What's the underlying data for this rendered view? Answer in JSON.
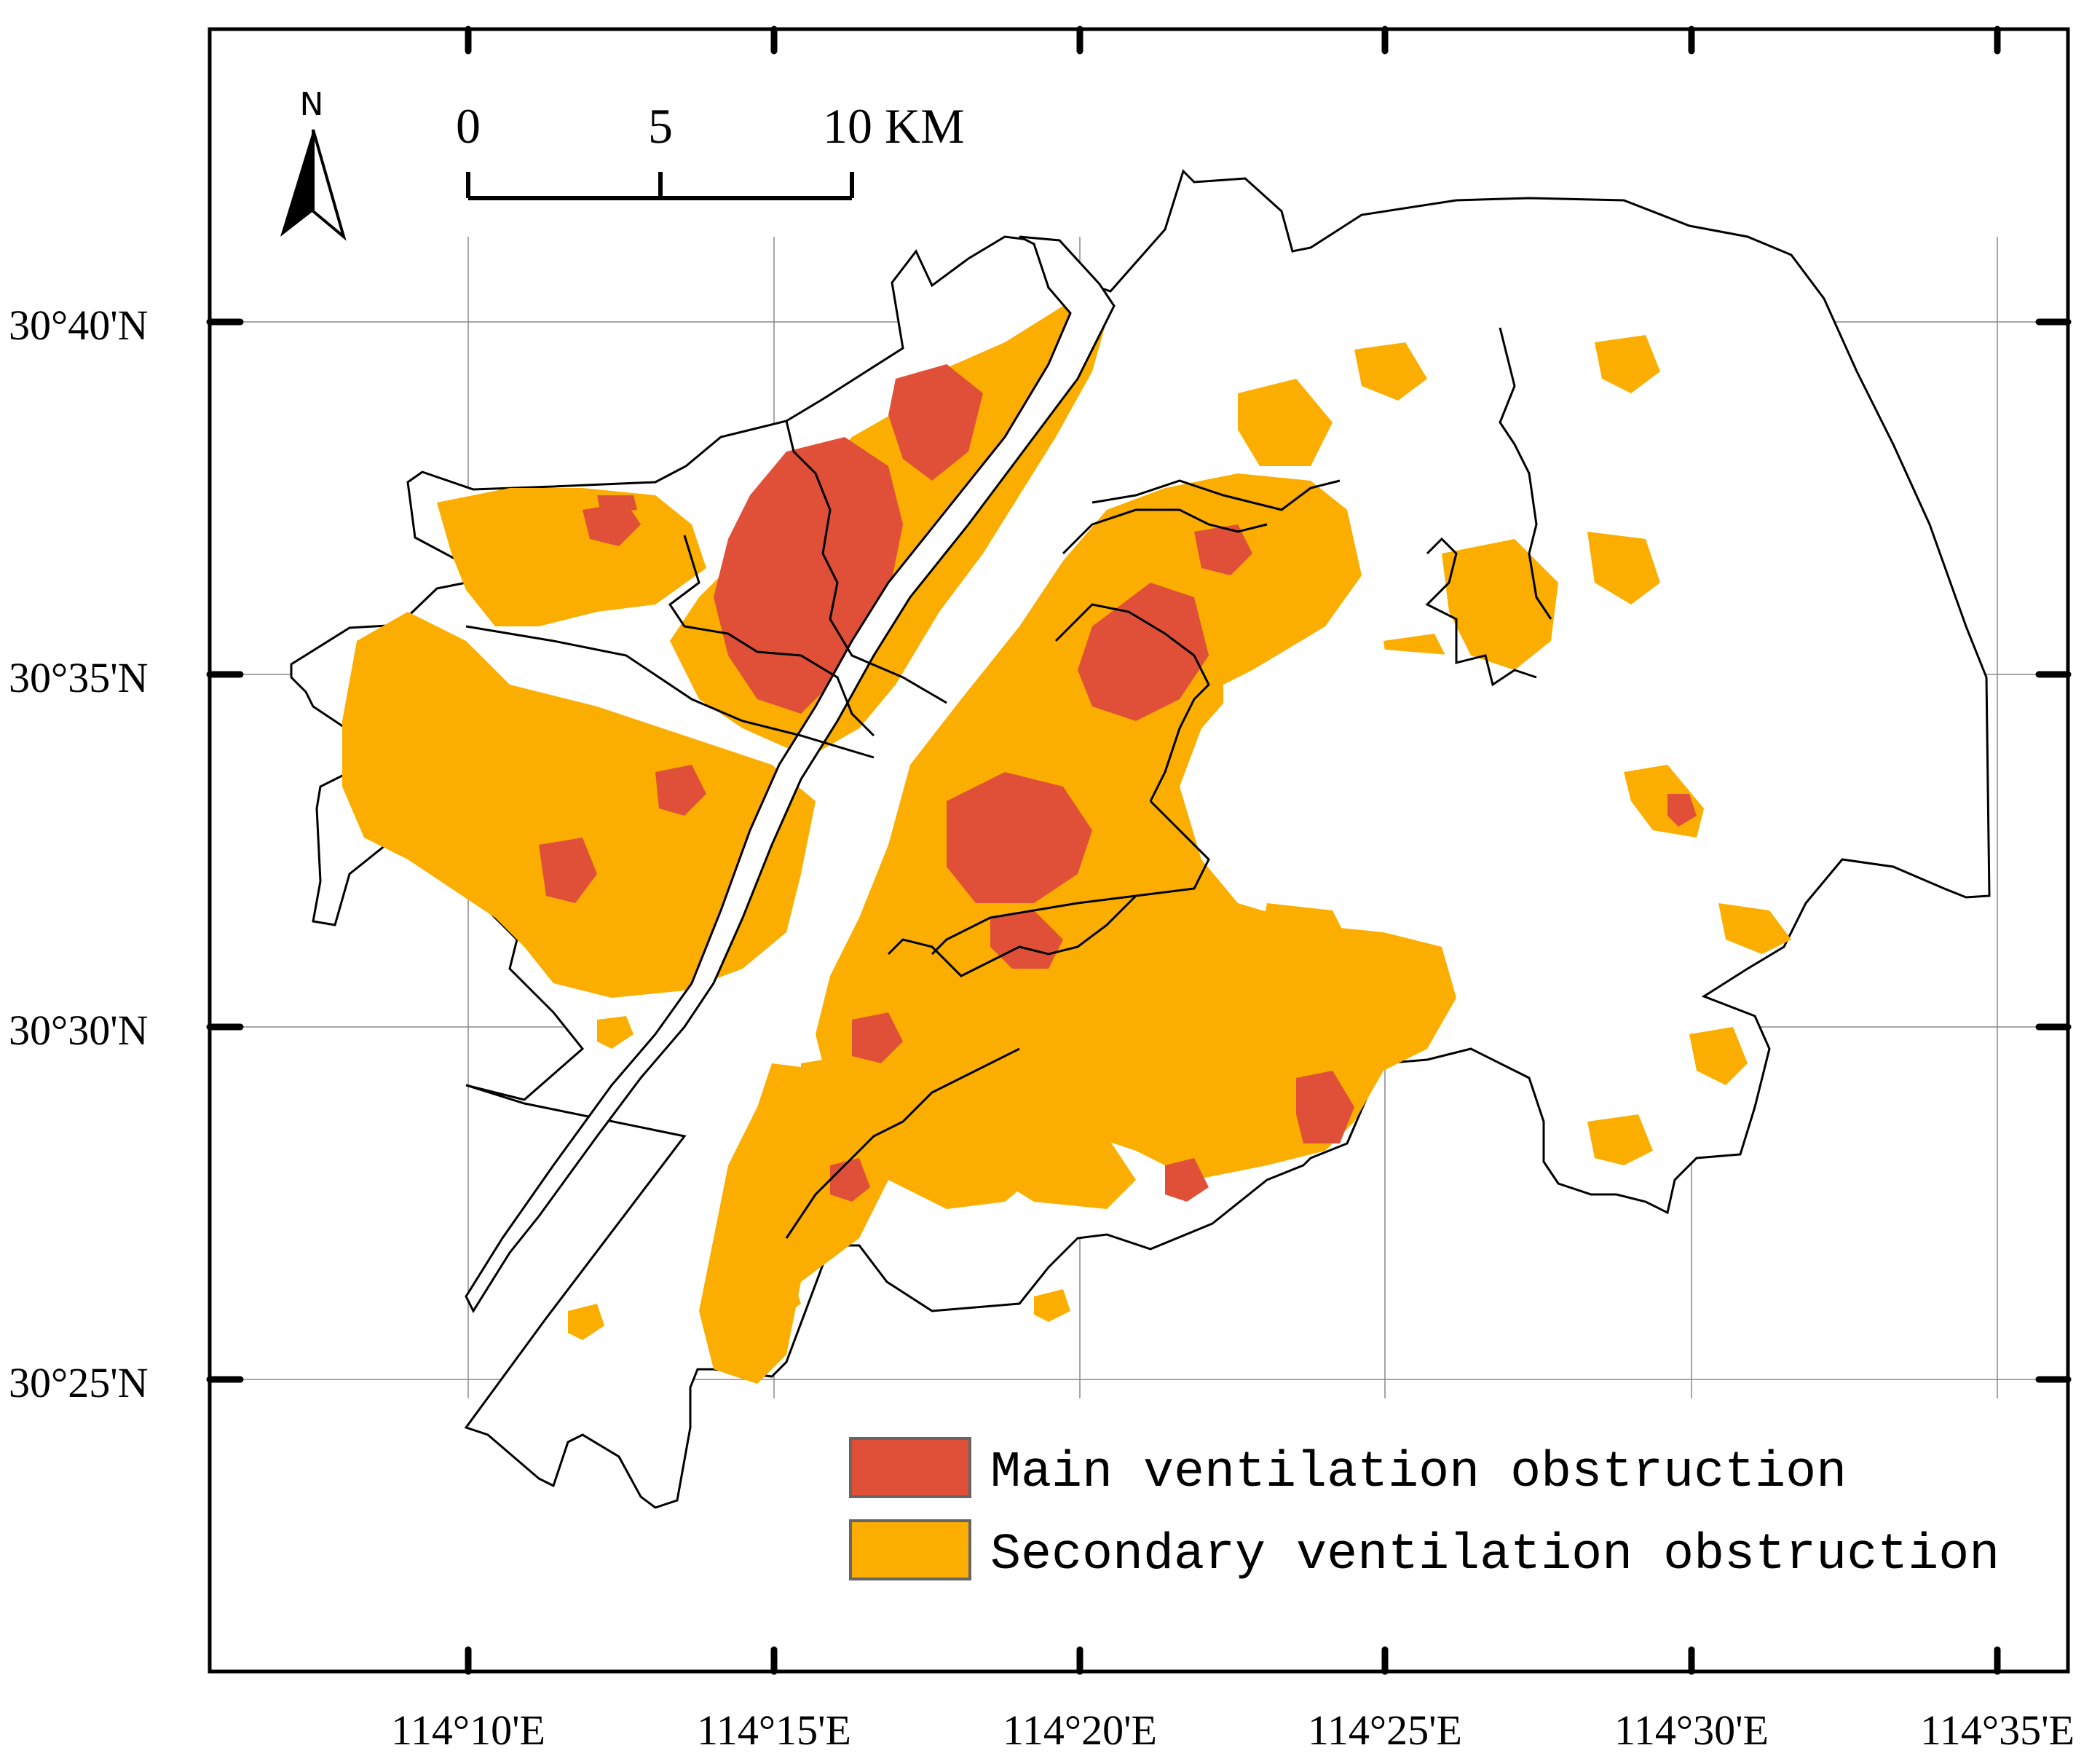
{
  "map": {
    "north_label": "N",
    "scale_bar": {
      "ticks": [
        "0",
        "5",
        "10 KM"
      ]
    },
    "lat_labels": [
      "30°40'N",
      "30°35'N",
      "30°30'N",
      "30°25'N"
    ],
    "lon_labels": [
      "114°10'E",
      "114°15'E",
      "114°20'E",
      "114°25'E",
      "114°30'E",
      "114°35'E"
    ],
    "legend": [
      {
        "label": "Main ventilation obstruction",
        "color": "#E05038"
      },
      {
        "label": "Secondary ventilation obstruction",
        "color": "#FBAE00"
      }
    ],
    "colors": {
      "main": "#E05038",
      "secondary": "#FBAE00",
      "boundary": "#000000"
    }
  }
}
